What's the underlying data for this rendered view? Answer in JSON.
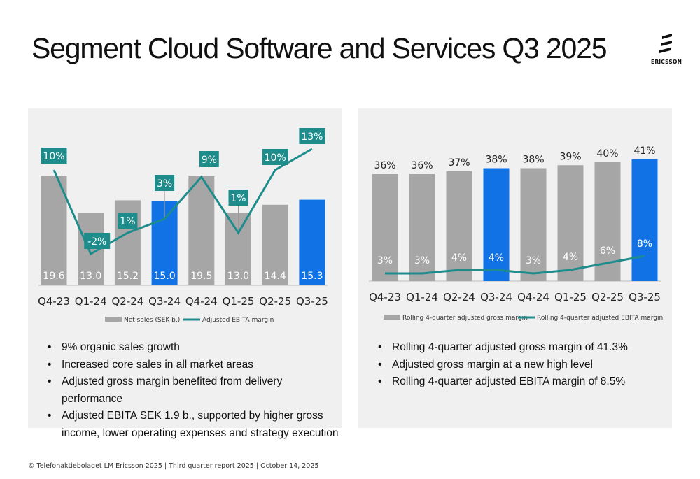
{
  "title": "Segment Cloud Software and Services Q3 2025",
  "logo": {
    "text": "ERICSSON"
  },
  "footer": "© Telefonaktiebolaget LM Ericsson 2025 | Third quarter report 2025 | October 14, 2025",
  "colors": {
    "gray": "#a6a6a6",
    "blue": "#1172e6",
    "teal": "#1f8c8c"
  },
  "chart_data": [
    {
      "type": "bar",
      "categories": [
        "Q4-23",
        "Q1-24",
        "Q2-24",
        "Q3-24",
        "Q4-24",
        "Q1-25",
        "Q2-25",
        "Q3-25"
      ],
      "series": [
        {
          "name": "Net sales (SEK b.)",
          "values": [
            19.6,
            13.0,
            15.2,
            15.0,
            19.5,
            13.0,
            14.4,
            15.3
          ],
          "labels": [
            "19.6",
            "13.0",
            "15.2",
            "15.0",
            "19.5",
            "13.0",
            "14.4",
            "15.3"
          ]
        },
        {
          "name": "Adjusted EBITA margin",
          "type": "line",
          "values": [
            10,
            -2,
            1,
            3,
            9,
            1,
            10,
            13
          ],
          "labels": [
            "10%",
            "-2%",
            "1%",
            "3%",
            "9%",
            "1%",
            "10%",
            "13%"
          ]
        }
      ],
      "highlight": [
        3,
        7
      ],
      "legend": "bottom"
    },
    {
      "type": "bar",
      "categories": [
        "Q4-23",
        "Q1-24",
        "Q2-24",
        "Q3-24",
        "Q4-24",
        "Q1-25",
        "Q2-25",
        "Q3-25"
      ],
      "series": [
        {
          "name": "Rolling 4-quarter adjusted gross margin",
          "values": [
            36,
            36,
            37,
            38,
            38,
            39,
            40,
            41
          ],
          "labels": [
            "36%",
            "36%",
            "37%",
            "38%",
            "38%",
            "39%",
            "40%",
            "41%"
          ]
        },
        {
          "name": "Rolling 4-quarter adjusted EBITA margin",
          "type": "line",
          "values": [
            3,
            3,
            4,
            4,
            3,
            4,
            6,
            8
          ],
          "labels": [
            "3%",
            "3%",
            "4%",
            "4%",
            "3%",
            "4%",
            "6%",
            "8%"
          ]
        }
      ],
      "highlight": [
        3,
        7
      ],
      "legend": "bottom"
    }
  ],
  "bullets_left": [
    "9% organic sales growth",
    "Increased core sales in all market areas",
    "Adjusted gross margin benefited from delivery performance",
    "Adjusted EBITA SEK 1.9 b., supported by higher gross income, lower operating expenses and strategy execution"
  ],
  "bullets_right": [
    "Rolling 4-quarter adjusted gross margin of 41.3%",
    "Adjusted gross margin at a new high level",
    "Rolling 4-quarter adjusted EBITA margin of 8.5%"
  ]
}
